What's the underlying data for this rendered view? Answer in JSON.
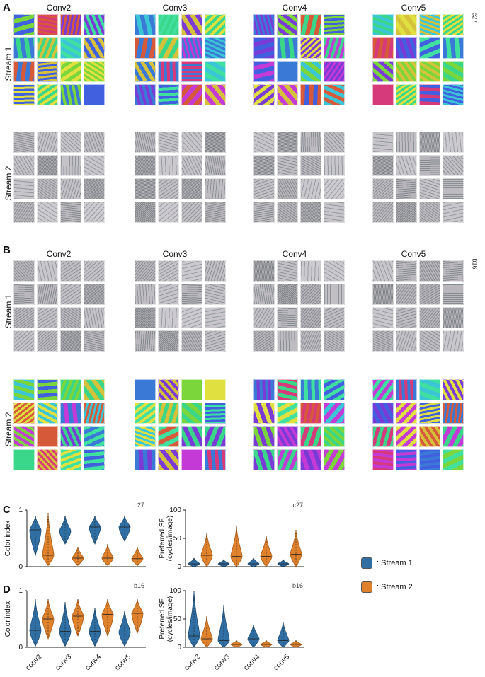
{
  "panels": {
    "A": {
      "letter": "A",
      "model_tag": "c27",
      "columns": [
        "Conv2",
        "Conv3",
        "Conv4",
        "Conv5"
      ],
      "rows": [
        "Stream 1",
        "Stream 2"
      ]
    },
    "B": {
      "letter": "B",
      "model_tag": "b16",
      "columns": [
        "Conv2",
        "Conv3",
        "Conv4",
        "Conv5"
      ],
      "rows": [
        "Stream 1",
        "Stream 2"
      ]
    },
    "C": {
      "letter": "C"
    },
    "D": {
      "letter": "D"
    }
  },
  "colors": {
    "stream1": "#2f6fa3",
    "stream2": "#e0822c",
    "stream1_edge": "#1f4e77",
    "stream2_edge": "#a85a18"
  },
  "legend": {
    "stream1": ": Stream 1",
    "stream2": ": Stream 2"
  },
  "chart_data": [
    {
      "id": "C-color",
      "type": "violin",
      "model": "c27",
      "ylabel": "Color index",
      "ylim": [
        0,
        1
      ],
      "yticks": [
        0,
        1
      ],
      "categories": [
        "conv2",
        "conv3",
        "conv4",
        "conv5"
      ],
      "series": [
        {
          "name": "Stream 1",
          "medians": [
            0.65,
            0.63,
            0.7,
            0.7
          ],
          "min": [
            0.2,
            0.4,
            0.4,
            0.45
          ],
          "max": [
            0.9,
            0.9,
            0.9,
            0.9
          ]
        },
        {
          "name": "Stream 2",
          "medians": [
            0.2,
            0.15,
            0.15,
            0.14
          ],
          "min": [
            0.02,
            0.02,
            0.02,
            0.02
          ],
          "max": [
            0.95,
            0.35,
            0.4,
            0.35
          ]
        }
      ]
    },
    {
      "id": "C-sf",
      "type": "violin",
      "model": "c27",
      "ylabel": "Preferred SF",
      "ylabel2": "(cycles/image)",
      "ylim": [
        0,
        100
      ],
      "yticks": [
        0,
        50,
        100
      ],
      "categories": [
        "conv2",
        "conv3",
        "conv4",
        "conv5"
      ],
      "series": [
        {
          "name": "Stream 1",
          "medians": [
            5,
            5,
            5,
            5
          ],
          "min": [
            0,
            0,
            0,
            0
          ],
          "max": [
            15,
            12,
            15,
            12
          ]
        },
        {
          "name": "Stream 2",
          "medians": [
            20,
            18,
            18,
            22
          ],
          "min": [
            0,
            0,
            0,
            0
          ],
          "max": [
            60,
            72,
            55,
            65
          ]
        }
      ]
    },
    {
      "id": "D-color",
      "type": "violin",
      "model": "b16",
      "ylabel": "Color index",
      "ylim": [
        0,
        1
      ],
      "yticks": [
        0,
        1
      ],
      "categories": [
        "conv2",
        "conv3",
        "conv4",
        "conv5"
      ],
      "series": [
        {
          "name": "Stream 1",
          "medians": [
            0.3,
            0.28,
            0.28,
            0.27
          ],
          "min": [
            0.02,
            0.02,
            0.02,
            0.02
          ],
          "max": [
            0.85,
            0.8,
            0.7,
            0.65
          ]
        },
        {
          "name": "Stream 2",
          "medians": [
            0.5,
            0.55,
            0.58,
            0.6
          ],
          "min": [
            0.15,
            0.2,
            0.2,
            0.25
          ],
          "max": [
            0.85,
            0.85,
            0.85,
            0.85
          ]
        }
      ]
    },
    {
      "id": "D-sf",
      "type": "violin",
      "model": "b16",
      "ylabel": "Preferred SF",
      "ylabel2": "(cycles/image)",
      "ylim": [
        0,
        100
      ],
      "yticks": [
        0,
        50,
        100
      ],
      "categories": [
        "conv2",
        "conv3",
        "conv4",
        "conv5"
      ],
      "series": [
        {
          "name": "Stream 1",
          "medians": [
            20,
            12,
            15,
            12
          ],
          "min": [
            0,
            0,
            0,
            0
          ],
          "max": [
            100,
            75,
            40,
            45
          ]
        },
        {
          "name": "Stream 2",
          "medians": [
            15,
            5,
            5,
            5
          ],
          "min": [
            0,
            0,
            0,
            0
          ],
          "max": [
            55,
            12,
            12,
            12
          ]
        }
      ]
    }
  ]
}
